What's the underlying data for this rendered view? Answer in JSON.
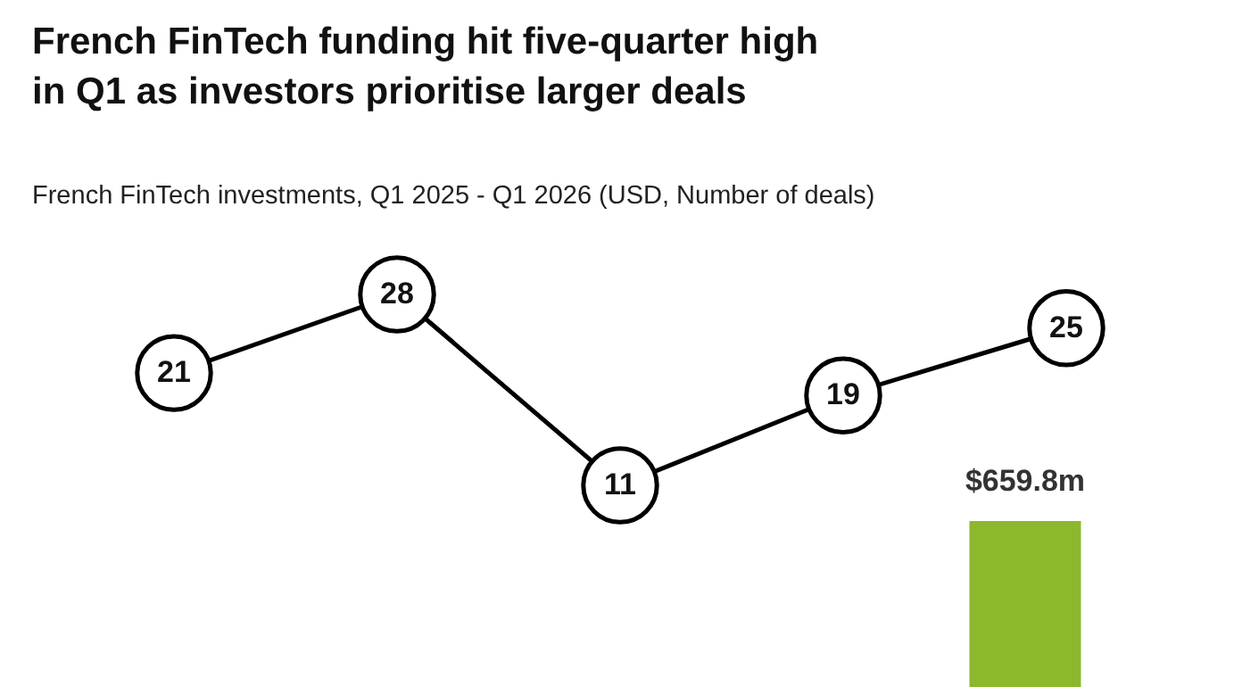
{
  "chart_data": [
    {
      "type": "line",
      "title": "French FinTech funding hit five-quarter high in Q1 as investors prioritise larger deals",
      "subtitle": "French FinTech investments, Q1 2025 - Q1 2026 (USD, Number of deals)",
      "categories": [
        null,
        null,
        null,
        null,
        null
      ],
      "series": [
        {
          "color": "#000000",
          "values": [
            21,
            28,
            11,
            19,
            25
          ]
        }
      ],
      "data_labels": true,
      "marker": "circle",
      "line_style": "solid"
    },
    {
      "type": "bar",
      "categories": [
        null,
        null,
        null,
        null,
        null
      ],
      "series": [
        {
          "color": "#8cb82b",
          "values": [
            null,
            null,
            null,
            null,
            659.8
          ],
          "value_labels": [
            null,
            null,
            null,
            null,
            "$659.8m"
          ]
        }
      ]
    }
  ]
}
